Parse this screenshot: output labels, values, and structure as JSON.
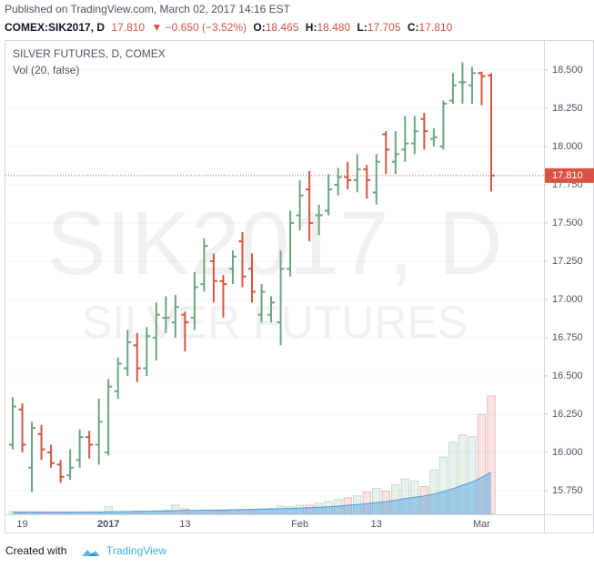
{
  "header": {
    "published": "Published on TradingView.com, March 02, 2017 14:16 EST",
    "symbol": "COMEX:SIK2017, D",
    "last": "17.810",
    "change": "▼ −0.650 (−3.52%)",
    "ohlc": [
      {
        "label": "O:",
        "value": "18.465"
      },
      {
        "label": "H:",
        "value": "18.480"
      },
      {
        "label": "L:",
        "value": "17.705"
      },
      {
        "label": "C:",
        "value": "17.810"
      }
    ]
  },
  "chart_data": {
    "type": "ohlc",
    "title": "SILVER FUTURES, D, COMEX",
    "volume_label": "Vol (20, false)",
    "watermark": [
      "SIK2017, D",
      "SILVER FUTURES"
    ],
    "categories": [
      null,
      "19",
      null,
      null,
      null,
      null,
      null,
      null,
      null,
      null,
      "2017",
      null,
      null,
      null,
      null,
      null,
      null,
      null,
      "13",
      null,
      null,
      null,
      null,
      null,
      null,
      null,
      null,
      null,
      null,
      null,
      "Feb",
      null,
      null,
      null,
      null,
      null,
      null,
      null,
      "13",
      null,
      null,
      null,
      null,
      null,
      null,
      null,
      null,
      null,
      null,
      "Mar",
      null
    ],
    "open": [
      16.05,
      16.28,
      15.9,
      16.12,
      16.0,
      15.92,
      15.85,
      15.95,
      16.1,
      16.05,
      16.0,
      16.4,
      16.55,
      16.7,
      16.55,
      16.75,
      16.88,
      16.85,
      16.9,
      16.88,
      17.1,
      17.25,
      17.12,
      17.2,
      17.38,
      17.2,
      16.9,
      16.9,
      16.85,
      17.2,
      17.55,
      17.72,
      17.55,
      17.58,
      17.75,
      17.8,
      17.78,
      17.85,
      17.7,
      18.08,
      17.9,
      17.98,
      18.02,
      18.18,
      18.05,
      18.0,
      18.3,
      18.42,
      18.4,
      18.48,
      18.465
    ],
    "high": [
      16.36,
      16.32,
      16.2,
      16.18,
      16.05,
      15.95,
      16.02,
      16.15,
      16.14,
      16.35,
      16.48,
      16.62,
      16.8,
      16.78,
      16.82,
      16.98,
      17.02,
      17.03,
      16.92,
      17.18,
      17.4,
      17.3,
      17.16,
      17.32,
      17.44,
      17.3,
      17.1,
      17.02,
      17.32,
      17.58,
      17.78,
      17.84,
      17.62,
      17.82,
      17.86,
      17.9,
      17.95,
      17.88,
      17.95,
      18.1,
      18.1,
      18.2,
      18.2,
      18.22,
      18.12,
      18.3,
      18.48,
      18.55,
      18.52,
      18.49,
      18.48
    ],
    "low": [
      16.02,
      16.0,
      15.74,
      15.95,
      15.9,
      15.8,
      15.82,
      15.9,
      15.96,
      15.92,
      15.98,
      16.35,
      16.5,
      16.46,
      16.5,
      16.6,
      16.78,
      16.75,
      16.66,
      16.8,
      17.05,
      16.98,
      16.88,
      17.1,
      17.08,
      16.98,
      16.85,
      16.85,
      16.7,
      17.15,
      17.45,
      17.38,
      17.42,
      17.55,
      17.68,
      17.72,
      17.7,
      17.66,
      17.62,
      17.82,
      17.82,
      17.9,
      17.95,
      17.98,
      18.0,
      17.98,
      18.28,
      18.28,
      18.28,
      18.27,
      17.705
    ],
    "close": [
      16.3,
      16.05,
      16.16,
      16.02,
      15.93,
      15.84,
      15.9,
      16.1,
      16.05,
      16.2,
      16.43,
      16.58,
      16.72,
      16.55,
      16.76,
      16.9,
      16.88,
      16.95,
      16.85,
      17.08,
      17.35,
      17.12,
      17.1,
      17.28,
      17.15,
      17.05,
      17.05,
      16.98,
      17.2,
      17.5,
      17.68,
      17.5,
      17.55,
      17.72,
      17.8,
      17.78,
      17.85,
      17.78,
      17.9,
      17.98,
      17.95,
      18.02,
      18.1,
      18.1,
      18.06,
      18.28,
      18.4,
      18.42,
      18.48,
      18.46,
      17.81
    ],
    "volume": [
      3000,
      2000,
      2000,
      1500,
      1500,
      1500,
      1500,
      2000,
      2500,
      2000,
      8000,
      3000,
      3000,
      3500,
      3500,
      4000,
      4500,
      10000,
      6000,
      4000,
      4500,
      4000,
      4000,
      5000,
      5000,
      5500,
      6000,
      6500,
      9000,
      8500,
      10000,
      10000,
      12000,
      14000,
      16000,
      18000,
      20000,
      24000,
      28000,
      25000,
      32000,
      38000,
      36000,
      30000,
      48000,
      62000,
      78000,
      86000,
      84000,
      108000,
      128000
    ],
    "volume_ma": [
      2500,
      2500,
      2500,
      2500,
      2400,
      2400,
      2400,
      2400,
      2500,
      2500,
      2800,
      2900,
      3000,
      3100,
      3200,
      3300,
      3500,
      3900,
      4100,
      4200,
      4400,
      4500,
      4700,
      4900,
      5000,
      5200,
      5400,
      5600,
      6000,
      6300,
      6700,
      7100,
      7600,
      8200,
      8900,
      9700,
      10500,
      11500,
      12700,
      13800,
      15200,
      16900,
      18500,
      19800,
      21800,
      24500,
      27800,
      31500,
      35000,
      39800,
      45500
    ],
    "up_color": "#6ba583",
    "down_color": "#d75442",
    "volume_ma_color": "#4a9ee0",
    "ylim": [
      15.595,
      18.69
    ],
    "yticks": [
      {
        "value": 15.75,
        "label": "15.750"
      },
      {
        "value": 16.0,
        "label": "16.000"
      },
      {
        "value": 16.25,
        "label": "16.250"
      },
      {
        "value": 16.5,
        "label": "16.500"
      },
      {
        "value": 16.75,
        "label": "16.750"
      },
      {
        "value": 17.0,
        "label": "17.000"
      },
      {
        "value": 17.25,
        "label": "17.250"
      },
      {
        "value": 17.5,
        "label": "17.500"
      },
      {
        "value": 17.75,
        "label": "17.750"
      },
      {
        "value": 18.0,
        "label": "18.000"
      },
      {
        "value": 18.25,
        "label": "18.250"
      },
      {
        "value": 18.5,
        "label": "18.500"
      }
    ],
    "last_price": {
      "value": 17.81,
      "label": "17.810"
    },
    "grid": true
  },
  "footer": {
    "created_with": "Created with",
    "brand": "TradingView"
  }
}
